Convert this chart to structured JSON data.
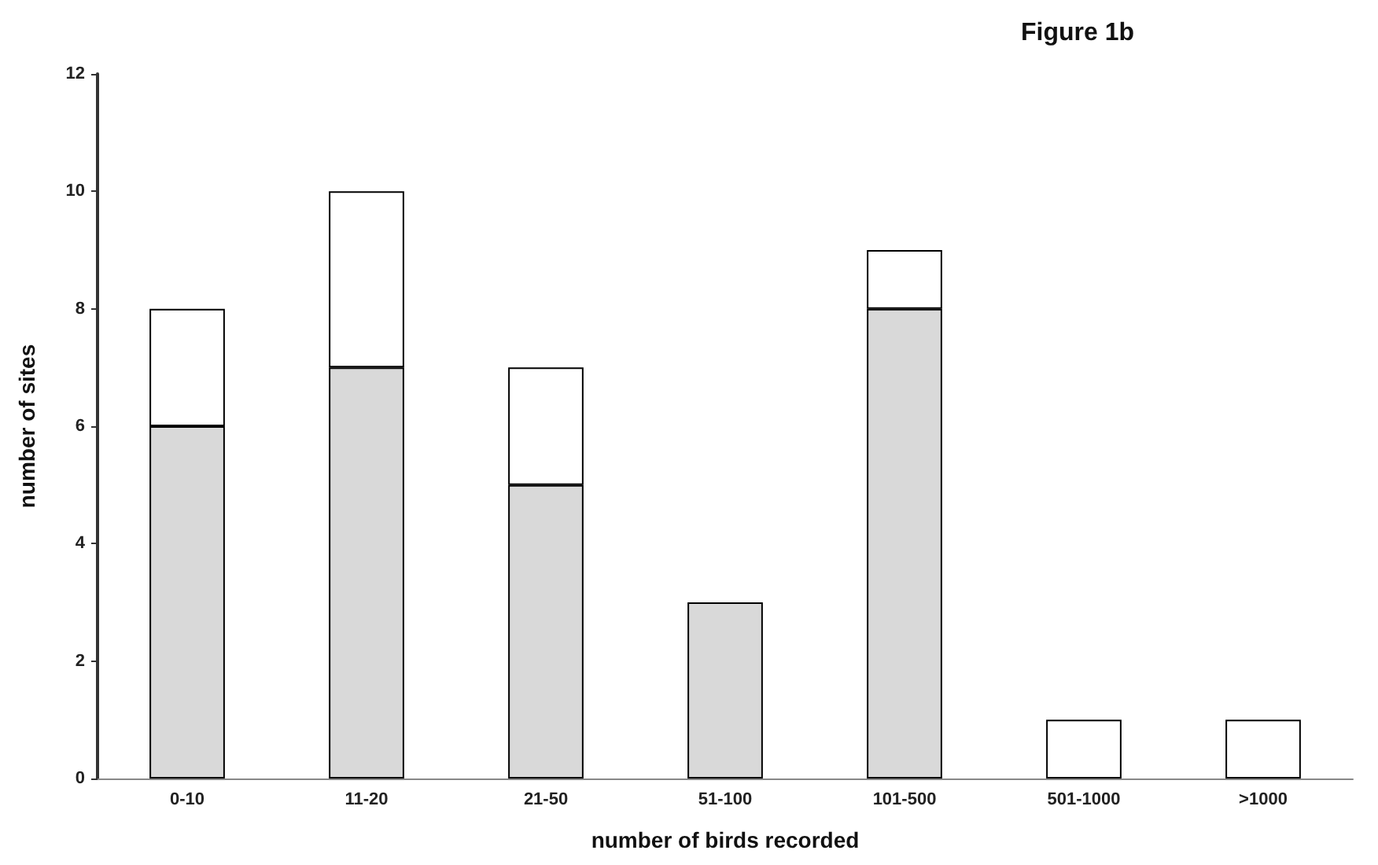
{
  "chart_data": {
    "type": "bar",
    "title": "Figure 1b",
    "xlabel": "number of birds recorded",
    "ylabel": "number of sites",
    "categories": [
      "0-10",
      "11-20",
      "21-50",
      "51-100",
      "101-500",
      "501-1000",
      ">1000"
    ],
    "stacked": true,
    "series": [
      {
        "color": "#d9d9d9",
        "values": [
          6,
          7,
          5,
          3,
          8,
          0,
          0
        ]
      },
      {
        "color": "#ffffff",
        "values": [
          2,
          3,
          2,
          0,
          1,
          1,
          1
        ]
      }
    ],
    "ylim": [
      0,
      12
    ],
    "yticks": [
      0,
      2,
      4,
      6,
      8,
      10,
      12
    ],
    "grid": false
  }
}
